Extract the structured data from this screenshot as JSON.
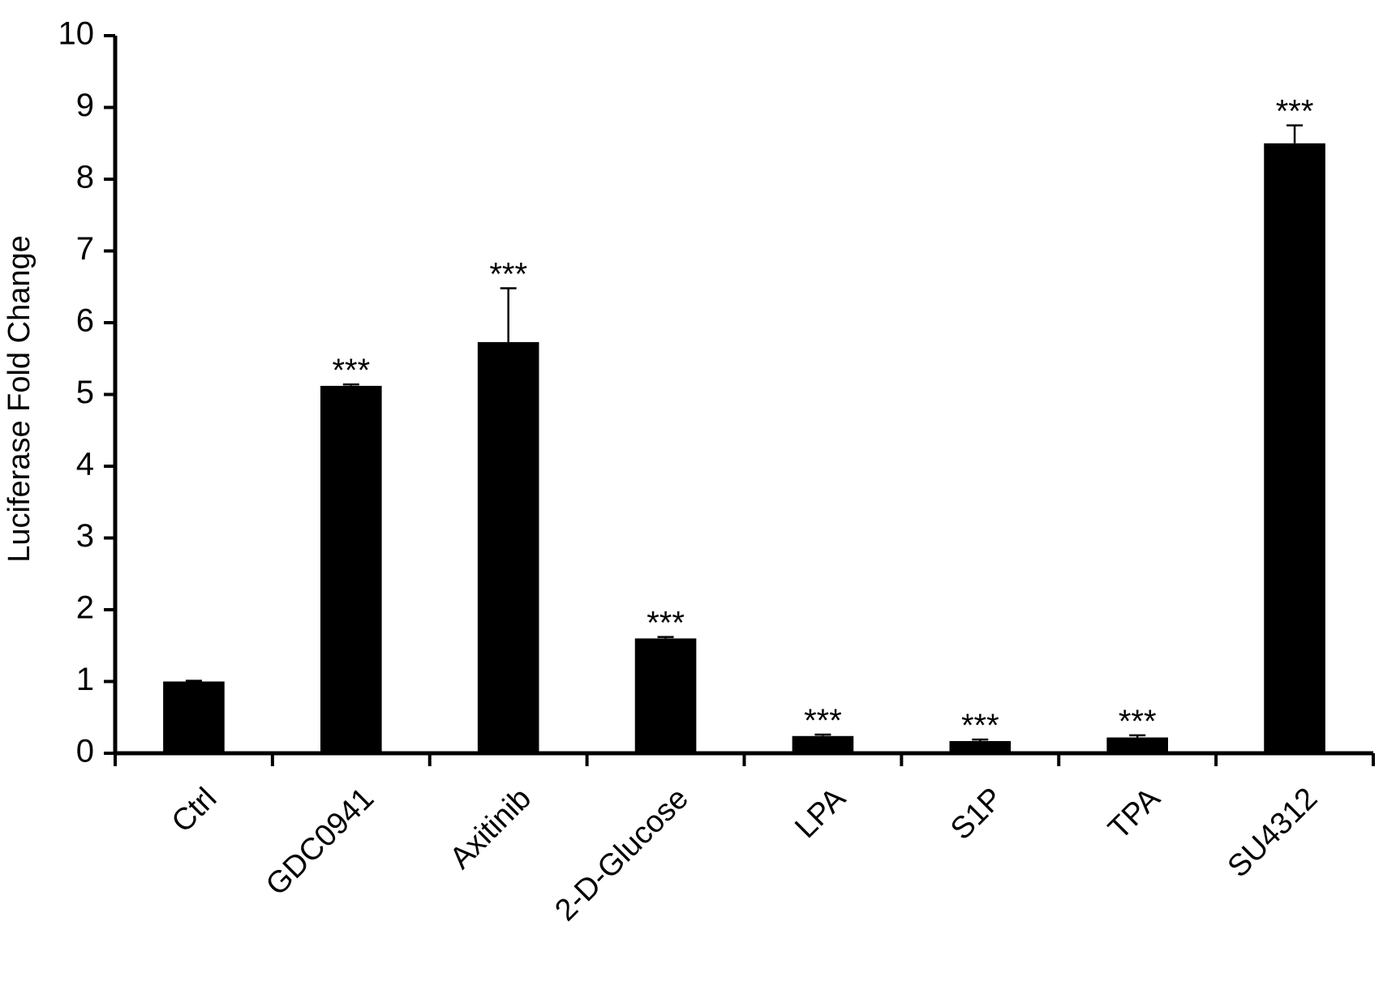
{
  "chart_data": {
    "type": "bar",
    "y_label": "Luciferase Fold Change",
    "categories": [
      "Ctrl",
      "GDC0941",
      "Axitinib",
      "2-D-Glucose",
      "LPA",
      "S1P",
      "TPA",
      "SU4312"
    ],
    "values": [
      1.0,
      5.12,
      5.73,
      1.6,
      0.24,
      0.17,
      0.22,
      8.5
    ],
    "errors": [
      0.01,
      0.02,
      0.75,
      0.02,
      0.02,
      0.02,
      0.03,
      0.25
    ],
    "annotations": [
      null,
      "***",
      "***",
      "***",
      "***",
      "***",
      "***",
      "***"
    ],
    "color": "#000000",
    "ylim": [
      0,
      10
    ],
    "yticks": [
      0,
      1,
      2,
      3,
      4,
      5,
      6,
      7,
      8,
      9,
      10
    ],
    "grid": false
  }
}
